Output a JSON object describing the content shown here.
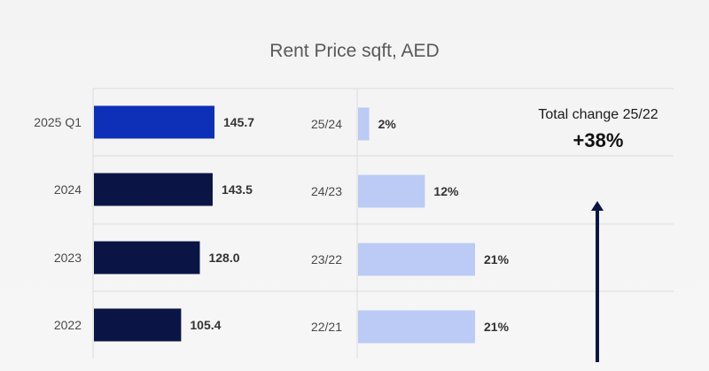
{
  "chart_data": [
    {
      "type": "bar",
      "orientation": "horizontal",
      "title": "Rent Price sqft, AED",
      "categories": [
        "2025 Q1",
        "2024",
        "2023",
        "2022"
      ],
      "values": [
        145.7,
        143.5,
        128.0,
        105.4
      ],
      "value_labels": [
        "145.7",
        "143.5",
        "128.0",
        "105.4"
      ],
      "colors": [
        "#0e2fb8",
        "#0a1545",
        "#0a1545",
        "#0a1545"
      ]
    },
    {
      "type": "bar",
      "orientation": "horizontal",
      "categories": [
        "25/24",
        "24/23",
        "23/22",
        "22/21"
      ],
      "values": [
        2,
        12,
        21,
        21
      ],
      "value_labels": [
        "2%",
        "12%",
        "21%",
        "21%"
      ],
      "color": "#bccbf5"
    }
  ],
  "summary": {
    "label": "Total change 25/22",
    "value": "+38%"
  },
  "colors": {
    "arrow": "#0a1545",
    "grid": "#dcdcdc"
  }
}
